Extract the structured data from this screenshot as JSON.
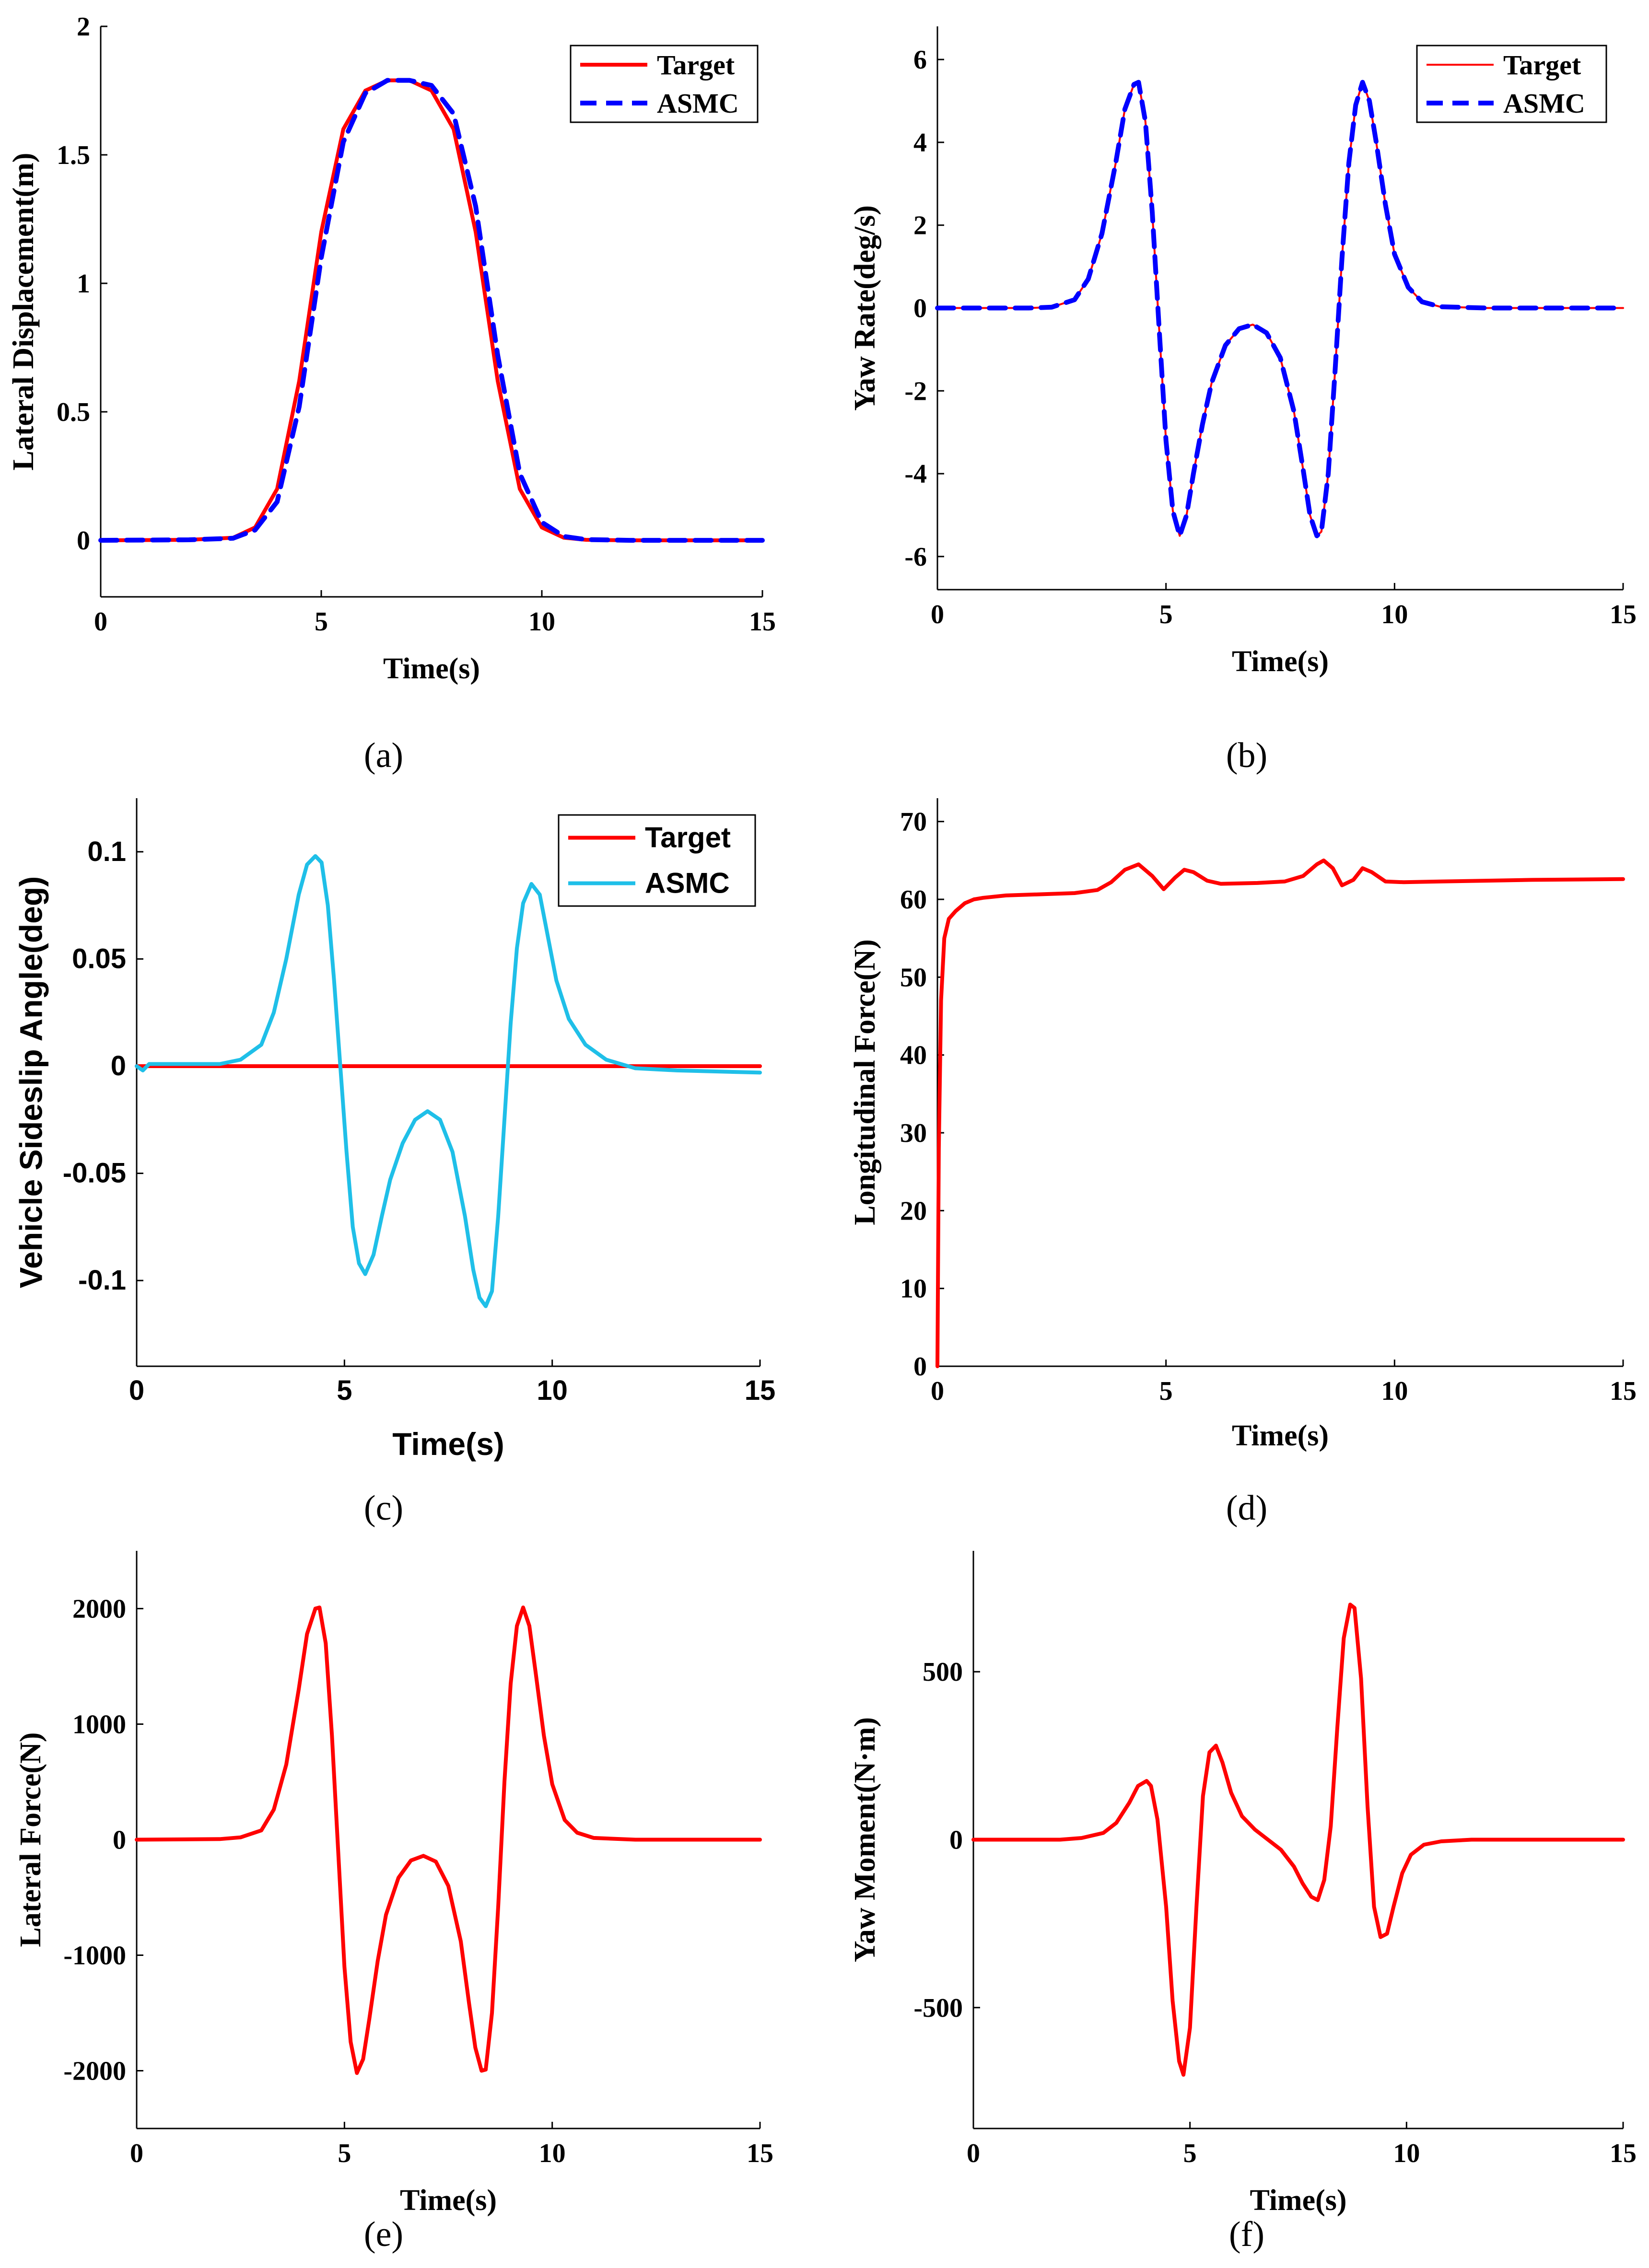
{
  "chart_data": [
    {
      "type": "line",
      "caption": "(a)",
      "xlabel": "Time(s)",
      "ylabel": "Lateral Displacement(m)",
      "xlim": [
        0,
        15
      ],
      "ylim": [
        -0.22,
        2
      ],
      "xticks": [
        0,
        5,
        10,
        15
      ],
      "yticks": [
        0,
        0.5,
        1,
        1.5,
        2
      ],
      "grid": false,
      "legend": "top-right",
      "series": [
        {
          "name": "Target",
          "color": "#ff0000",
          "style": "solid",
          "x": [
            0,
            2,
            3,
            3.5,
            4,
            4.5,
            5,
            5.5,
            6,
            6.5,
            7,
            7.5,
            8,
            8.5,
            9,
            9.5,
            10,
            10.5,
            11,
            12,
            15
          ],
          "y": [
            0,
            0.002,
            0.01,
            0.05,
            0.2,
            0.62,
            1.2,
            1.6,
            1.75,
            1.79,
            1.79,
            1.75,
            1.6,
            1.2,
            0.62,
            0.2,
            0.05,
            0.01,
            0.002,
            0,
            0
          ]
        },
        {
          "name": "ASMC",
          "color": "#0000ff",
          "style": "dashed",
          "x": [
            0,
            2,
            3,
            3.5,
            4,
            4.5,
            5,
            5.5,
            6,
            6.5,
            7,
            7.5,
            8,
            8.5,
            9,
            9.5,
            10,
            10.5,
            11,
            12,
            15
          ],
          "y": [
            0,
            0.002,
            0.008,
            0.04,
            0.15,
            0.52,
            1.1,
            1.55,
            1.74,
            1.79,
            1.79,
            1.77,
            1.66,
            1.3,
            0.72,
            0.26,
            0.07,
            0.015,
            0.003,
            0,
            0
          ]
        }
      ]
    },
    {
      "type": "line",
      "caption": "(b)",
      "xlabel": "Time(s)",
      "ylabel": "Yaw Rate(deg/s)",
      "xlim": [
        0,
        15
      ],
      "ylim": [
        -6.8,
        6.8
      ],
      "xticks": [
        0,
        5,
        10,
        15
      ],
      "yticks": [
        -6,
        -4,
        -2,
        0,
        2,
        4,
        6
      ],
      "grid": false,
      "legend": "top-right",
      "series": [
        {
          "name": "Target",
          "color": "#ff0000",
          "style": "solid",
          "x": [
            0,
            2,
            2.5,
            3,
            3.3,
            3.6,
            3.9,
            4.1,
            4.3,
            4.4,
            4.55,
            4.7,
            4.85,
            5,
            5.15,
            5.3,
            5.45,
            5.6,
            5.8,
            6,
            6.3,
            6.6,
            6.9,
            7.2,
            7.5,
            7.8,
            8.0,
            8.15,
            8.3,
            8.4,
            8.55,
            8.7,
            8.85,
            9.0,
            9.15,
            9.3,
            9.45,
            9.6,
            9.8,
            10,
            10.3,
            10.6,
            11,
            12,
            15
          ],
          "y": [
            0,
            0,
            0.02,
            0.2,
            0.7,
            1.8,
            3.5,
            4.8,
            5.4,
            5.45,
            4.5,
            2.3,
            -0.5,
            -3.2,
            -4.9,
            -5.5,
            -5.0,
            -4.0,
            -2.8,
            -1.8,
            -0.9,
            -0.5,
            -0.4,
            -0.6,
            -1.2,
            -2.5,
            -3.9,
            -5.0,
            -5.5,
            -5.4,
            -4.0,
            -1.5,
            1.2,
            3.5,
            4.9,
            5.45,
            5.0,
            4.0,
            2.5,
            1.3,
            0.5,
            0.15,
            0.03,
            0,
            0
          ]
        },
        {
          "name": "ASMC",
          "color": "#0000ff",
          "style": "dashed",
          "x": [
            0,
            2,
            2.5,
            3,
            3.3,
            3.6,
            3.9,
            4.1,
            4.3,
            4.4,
            4.55,
            4.7,
            4.85,
            5,
            5.15,
            5.3,
            5.45,
            5.6,
            5.8,
            6,
            6.3,
            6.6,
            6.9,
            7.2,
            7.5,
            7.8,
            8.0,
            8.15,
            8.3,
            8.4,
            8.55,
            8.7,
            8.85,
            9.0,
            9.15,
            9.3,
            9.45,
            9.6,
            9.8,
            10,
            10.3,
            10.6,
            11,
            12,
            15
          ],
          "y": [
            0,
            0,
            0.02,
            0.2,
            0.7,
            1.8,
            3.5,
            4.8,
            5.4,
            5.45,
            4.5,
            2.3,
            -0.5,
            -3.2,
            -4.9,
            -5.5,
            -5.0,
            -4.0,
            -2.8,
            -1.8,
            -0.9,
            -0.5,
            -0.4,
            -0.6,
            -1.2,
            -2.5,
            -3.9,
            -5.0,
            -5.5,
            -5.4,
            -4.0,
            -1.5,
            1.2,
            3.5,
            4.9,
            5.45,
            5.0,
            4.0,
            2.5,
            1.3,
            0.5,
            0.15,
            0.03,
            0,
            0
          ]
        }
      ]
    },
    {
      "type": "line",
      "caption": "(c)",
      "xlabel": "Time(s)",
      "ylabel": "Vehicle Sideslip Angle(deg)",
      "xlim": [
        0,
        15
      ],
      "ylim": [
        -0.14,
        0.125
      ],
      "xticks": [
        0,
        5,
        10,
        15
      ],
      "yticks": [
        -0.1,
        -0.05,
        0,
        0.05,
        0.1
      ],
      "grid": false,
      "legend": "top-right",
      "series": [
        {
          "name": "Target",
          "color": "#ff0000",
          "style": "solid",
          "x": [
            0,
            15
          ],
          "y": [
            0,
            0
          ]
        },
        {
          "name": "ASMC",
          "color": "#1fbfe8",
          "style": "solid",
          "x": [
            0,
            0.15,
            0.3,
            0.5,
            1,
            2,
            2.5,
            3,
            3.3,
            3.6,
            3.9,
            4.1,
            4.3,
            4.45,
            4.6,
            4.75,
            4.9,
            5.05,
            5.2,
            5.35,
            5.5,
            5.7,
            5.9,
            6.1,
            6.4,
            6.7,
            7.0,
            7.3,
            7.6,
            7.9,
            8.1,
            8.25,
            8.4,
            8.55,
            8.7,
            8.85,
            9.0,
            9.15,
            9.3,
            9.5,
            9.7,
            9.9,
            10.1,
            10.4,
            10.8,
            11.3,
            12,
            13,
            15
          ],
          "y": [
            0,
            -0.002,
            0.001,
            0.001,
            0.001,
            0.001,
            0.003,
            0.01,
            0.025,
            0.05,
            0.08,
            0.094,
            0.098,
            0.095,
            0.075,
            0.04,
            0,
            -0.04,
            -0.075,
            -0.092,
            -0.097,
            -0.088,
            -0.07,
            -0.053,
            -0.036,
            -0.025,
            -0.021,
            -0.025,
            -0.04,
            -0.07,
            -0.095,
            -0.108,
            -0.112,
            -0.105,
            -0.07,
            -0.025,
            0.02,
            0.055,
            0.076,
            0.085,
            0.08,
            0.06,
            0.04,
            0.022,
            0.01,
            0.003,
            -0.001,
            -0.002,
            -0.003
          ]
        }
      ]
    },
    {
      "type": "line",
      "caption": "(d)",
      "xlabel": "Time(s)",
      "ylabel": "Longitudinal Force(N)",
      "xlim": [
        0,
        15
      ],
      "ylim": [
        0,
        73
      ],
      "xticks": [
        0,
        5,
        10,
        15
      ],
      "yticks": [
        0,
        10,
        20,
        30,
        40,
        50,
        60,
        70
      ],
      "grid": false,
      "legend": "none",
      "series": [
        {
          "name": "",
          "color": "#ff0000",
          "style": "solid",
          "x": [
            0,
            0.03,
            0.08,
            0.15,
            0.25,
            0.4,
            0.6,
            0.8,
            1,
            1.5,
            2,
            3,
            3.5,
            3.8,
            4.1,
            4.4,
            4.7,
            4.95,
            5.2,
            5.4,
            5.6,
            5.9,
            6.2,
            7,
            7.6,
            8.0,
            8.3,
            8.45,
            8.65,
            8.85,
            9.1,
            9.3,
            9.5,
            9.8,
            10.2,
            11,
            12,
            13,
            15
          ],
          "y": [
            0,
            28,
            47,
            55,
            57.5,
            58.5,
            59.5,
            60,
            60.2,
            60.5,
            60.6,
            60.8,
            61.2,
            62.2,
            63.8,
            64.5,
            63,
            61.3,
            62.8,
            63.8,
            63.5,
            62.4,
            62,
            62.1,
            62.3,
            63,
            64.5,
            65,
            64,
            61.8,
            62.5,
            64,
            63.5,
            62.3,
            62.2,
            62.3,
            62.4,
            62.5,
            62.6
          ]
        }
      ]
    },
    {
      "type": "line",
      "caption": "(e)",
      "xlabel": "Time(s)",
      "ylabel": "Lateral Force(N)",
      "xlim": [
        0,
        15
      ],
      "ylim": [
        -2500,
        2500
      ],
      "xticks": [
        0,
        5,
        10,
        15
      ],
      "yticks": [
        -2000,
        -1000,
        0,
        1000,
        2000
      ],
      "grid": false,
      "legend": "none",
      "series": [
        {
          "name": "",
          "color": "#ff0000",
          "style": "solid",
          "x": [
            0,
            2,
            2.5,
            3,
            3.3,
            3.6,
            3.9,
            4.1,
            4.3,
            4.4,
            4.55,
            4.7,
            4.85,
            5,
            5.15,
            5.3,
            5.45,
            5.6,
            5.8,
            6,
            6.3,
            6.6,
            6.9,
            7.2,
            7.5,
            7.8,
            8.0,
            8.15,
            8.3,
            8.4,
            8.55,
            8.7,
            8.85,
            9.0,
            9.15,
            9.3,
            9.45,
            9.6,
            9.8,
            10,
            10.3,
            10.6,
            11,
            12,
            15
          ],
          "y": [
            0,
            5,
            20,
            80,
            260,
            650,
            1300,
            1780,
            2000,
            2010,
            1700,
            900,
            -100,
            -1100,
            -1750,
            -2020,
            -1900,
            -1550,
            -1050,
            -650,
            -330,
            -180,
            -140,
            -190,
            -400,
            -880,
            -1420,
            -1800,
            -2000,
            -1990,
            -1500,
            -580,
            500,
            1350,
            1850,
            2010,
            1850,
            1450,
            900,
            480,
            170,
            60,
            15,
            0,
            0
          ]
        }
      ]
    },
    {
      "type": "line",
      "caption": "(f)",
      "xlabel": "Time(s)",
      "ylabel": "Yaw Moment(N·m)",
      "xlim": [
        0,
        15
      ],
      "ylim": [
        -860,
        860
      ],
      "xticks": [
        0,
        5,
        10,
        15
      ],
      "yticks": [
        -500,
        0,
        500
      ],
      "grid": false,
      "legend": "none",
      "series": [
        {
          "name": "",
          "color": "#ff0000",
          "style": "solid",
          "x": [
            0,
            2,
            2.5,
            3,
            3.3,
            3.6,
            3.8,
            4.0,
            4.1,
            4.25,
            4.45,
            4.6,
            4.75,
            4.85,
            5.0,
            5.15,
            5.3,
            5.45,
            5.6,
            5.75,
            5.95,
            6.2,
            6.5,
            6.8,
            7.1,
            7.4,
            7.6,
            7.8,
            7.95,
            8.1,
            8.25,
            8.4,
            8.55,
            8.7,
            8.8,
            8.95,
            9.1,
            9.25,
            9.4,
            9.55,
            9.7,
            9.9,
            10.1,
            10.4,
            10.8,
            11.5,
            12.5,
            15
          ],
          "y": [
            0,
            0,
            5,
            20,
            50,
            110,
            160,
            175,
            160,
            60,
            -200,
            -480,
            -660,
            -700,
            -560,
            -200,
            130,
            260,
            280,
            230,
            140,
            70,
            30,
            0,
            -30,
            -80,
            -130,
            -170,
            -180,
            -120,
            40,
            330,
            600,
            700,
            690,
            480,
            100,
            -200,
            -290,
            -280,
            -200,
            -100,
            -45,
            -15,
            -5,
            0,
            0,
            0
          ]
        }
      ]
    }
  ]
}
